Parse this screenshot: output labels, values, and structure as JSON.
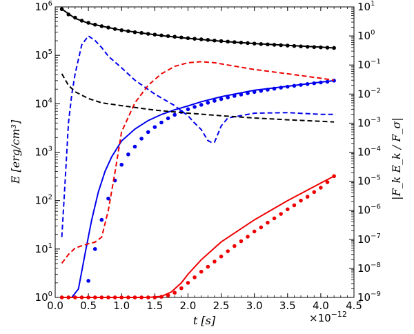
{
  "chart_data": {
    "type": "line",
    "x_axis": {
      "label": "t [s]",
      "range": [
        0.0,
        4.5
      ],
      "ticks": [
        0.0,
        0.5,
        1.0,
        1.5,
        2.0,
        2.5,
        3.0,
        3.5,
        4.0,
        4.5
      ],
      "tick_labels": [
        "0.0",
        "0.5",
        "1.0",
        "1.5",
        "2.0",
        "2.5",
        "3.0",
        "3.5",
        "4.0",
        "4.5"
      ],
      "multiplier_base": "×10",
      "multiplier_exp": "−12"
    },
    "y_left": {
      "label": "E [erg/cm³]",
      "scale": "log",
      "range": [
        1,
        1000000
      ],
      "tick_base": "10",
      "tick_exponents": [
        "0",
        "1",
        "2",
        "3",
        "4",
        "5",
        "6"
      ]
    },
    "y_right": {
      "label": "|F_k E_k / F_σ|",
      "scale": "log",
      "range": [
        1e-09,
        10
      ],
      "tick_base": "10",
      "tick_exponents": [
        "−9",
        "−8",
        "−7",
        "−6",
        "−5",
        "−4",
        "−3",
        "−2",
        "−1",
        "0",
        "1"
      ]
    },
    "grid": false,
    "series": [
      {
        "axis": "left",
        "style": "solid",
        "color": "#000000",
        "x": [
          0.1,
          0.3,
          0.5,
          0.7,
          1.0,
          1.3,
          1.6,
          2.0,
          2.5,
          3.0,
          3.5,
          4.0,
          4.2
        ],
        "y": [
          900000,
          580000,
          460000,
          400000,
          330000,
          290000,
          255000,
          225000,
          195000,
          175000,
          160000,
          148000,
          142000
        ]
      },
      {
        "axis": "left",
        "style": "points",
        "color": "#000000",
        "x": [
          0.1,
          0.2,
          0.3,
          0.4,
          0.5,
          0.6,
          0.7,
          0.8,
          0.9,
          1.0,
          1.1,
          1.2,
          1.3,
          1.4,
          1.5,
          1.6,
          1.7,
          1.8,
          1.9,
          2.0,
          2.1,
          2.2,
          2.3,
          2.4,
          2.5,
          2.6,
          2.7,
          2.8,
          2.9,
          3.0,
          3.1,
          3.2,
          3.3,
          3.4,
          3.5,
          3.6,
          3.7,
          3.8,
          3.9,
          4.0,
          4.1,
          4.2
        ],
        "y": [
          900000,
          700000,
          600000,
          520000,
          470000,
          430000,
          400000,
          375000,
          350000,
          330000,
          315000,
          300000,
          290000,
          278000,
          268000,
          258000,
          250000,
          242000,
          234000,
          226000,
          220000,
          214000,
          208000,
          202000,
          197000,
          192000,
          187000,
          183000,
          179000,
          175000,
          171000,
          168000,
          165000,
          162000,
          159000,
          156000,
          153000,
          150000,
          148000,
          146000,
          144000,
          142000
        ]
      },
      {
        "axis": "left",
        "style": "solid",
        "color": "#0000ee",
        "x": [
          0.25,
          0.35,
          0.45,
          0.55,
          0.65,
          0.75,
          0.85,
          1.0,
          1.2,
          1.4,
          1.6,
          1.8,
          2.0,
          2.2,
          2.5,
          3.0,
          3.5,
          4.0,
          4.2
        ],
        "y": [
          1,
          1.5,
          8,
          40,
          150,
          400,
          800,
          1700,
          3000,
          4500,
          6000,
          7500,
          9000,
          11000,
          14000,
          19000,
          23000,
          28000,
          30000
        ]
      },
      {
        "axis": "left",
        "style": "points",
        "color": "#0000ee",
        "x": [
          0.5,
          0.6,
          0.7,
          0.8,
          0.9,
          1.0,
          1.1,
          1.2,
          1.3,
          1.4,
          1.5,
          1.6,
          1.7,
          1.8,
          1.9,
          2.0,
          2.1,
          2.2,
          2.3,
          2.4,
          2.5,
          2.6,
          2.7,
          2.8,
          2.9,
          3.0,
          3.1,
          3.2,
          3.3,
          3.4,
          3.5,
          3.6,
          3.7,
          3.8,
          3.9,
          4.0,
          4.1,
          4.2
        ],
        "y": [
          2.2,
          10,
          40,
          110,
          260,
          550,
          900,
          1300,
          1900,
          2600,
          3300,
          4100,
          5000,
          5900,
          6800,
          7700,
          8600,
          9500,
          10500,
          11500,
          12500,
          13500,
          14500,
          15500,
          16500,
          17500,
          18500,
          19500,
          20500,
          21500,
          22500,
          23500,
          24500,
          25500,
          26500,
          27500,
          28500,
          30000
        ]
      },
      {
        "axis": "left",
        "style": "solid",
        "color": "#ee0000",
        "x": [
          0.1,
          0.5,
          1.0,
          1.4,
          1.6,
          1.75,
          1.9,
          2.0,
          2.2,
          2.5,
          3.0,
          3.5,
          4.0,
          4.2
        ],
        "y": [
          1,
          1,
          1,
          1,
          1.05,
          1.3,
          2,
          3,
          6,
          14,
          40,
          100,
          230,
          320
        ]
      },
      {
        "axis": "left",
        "style": "points",
        "color": "#ee0000",
        "x": [
          0.1,
          0.2,
          0.3,
          0.4,
          0.5,
          0.6,
          0.7,
          0.8,
          0.9,
          1.0,
          1.1,
          1.2,
          1.3,
          1.4,
          1.5,
          1.6,
          1.7,
          1.8,
          1.9,
          2.0,
          2.1,
          2.2,
          2.3,
          2.4,
          2.5,
          2.6,
          2.7,
          2.8,
          2.9,
          3.0,
          3.1,
          3.2,
          3.3,
          3.4,
          3.5,
          3.6,
          3.7,
          3.8,
          3.9,
          4.0,
          4.1,
          4.2
        ],
        "y": [
          1,
          1,
          1,
          1,
          1,
          1,
          1,
          1,
          1,
          1,
          1,
          1,
          1,
          1,
          1,
          1.03,
          1.1,
          1.25,
          1.55,
          2,
          2.6,
          3.4,
          4.3,
          5.5,
          7,
          9,
          11.5,
          14.5,
          18,
          23,
          28,
          35,
          43,
          53,
          66,
          80,
          100,
          120,
          150,
          185,
          240,
          320
        ]
      },
      {
        "axis": "right",
        "style": "dashed",
        "color": "#0000ee",
        "x": [
          0.1,
          0.15,
          0.2,
          0.25,
          0.3,
          0.4,
          0.5,
          0.6,
          0.7,
          0.8,
          1.0,
          1.2,
          1.5,
          1.8,
          2.0,
          2.1,
          2.2,
          2.3,
          2.35,
          2.4,
          2.5,
          2.6,
          3.0,
          3.5,
          4.0,
          4.2
        ],
        "y": [
          1.2e-07,
          1e-05,
          0.001,
          0.01,
          0.05,
          0.5,
          1.0,
          0.7,
          0.4,
          0.2,
          0.08,
          0.03,
          0.01,
          0.004,
          0.0018,
          0.001,
          0.0006,
          0.00025,
          0.00022,
          0.00022,
          0.0008,
          0.0015,
          0.0022,
          0.0023,
          0.002,
          0.002
        ]
      },
      {
        "axis": "right",
        "style": "dashed",
        "color": "#ee0000",
        "x": [
          0.1,
          0.2,
          0.3,
          0.4,
          0.5,
          0.6,
          0.7,
          0.8,
          0.9,
          1.0,
          1.2,
          1.4,
          1.6,
          1.8,
          2.0,
          2.2,
          2.4,
          2.6,
          3.0,
          3.5,
          4.0,
          4.2
        ],
        "y": [
          1.5e-08,
          3e-08,
          5e-08,
          6e-08,
          7e-08,
          8e-08,
          1.2e-07,
          1e-06,
          2e-05,
          0.0005,
          0.005,
          0.02,
          0.05,
          0.09,
          0.12,
          0.13,
          0.12,
          0.1,
          0.07,
          0.05,
          0.035,
          0.03
        ]
      },
      {
        "axis": "right",
        "style": "dashed",
        "color": "#000000",
        "x": [
          0.1,
          0.2,
          0.3,
          0.5,
          0.7,
          1.0,
          1.5,
          2.0,
          2.5,
          3.0,
          3.5,
          4.0,
          4.2
        ],
        "y": [
          0.05,
          0.02,
          0.012,
          0.007,
          0.005,
          0.004,
          0.0028,
          0.0022,
          0.0018,
          0.0015,
          0.0013,
          0.00115,
          0.0011
        ]
      }
    ]
  }
}
